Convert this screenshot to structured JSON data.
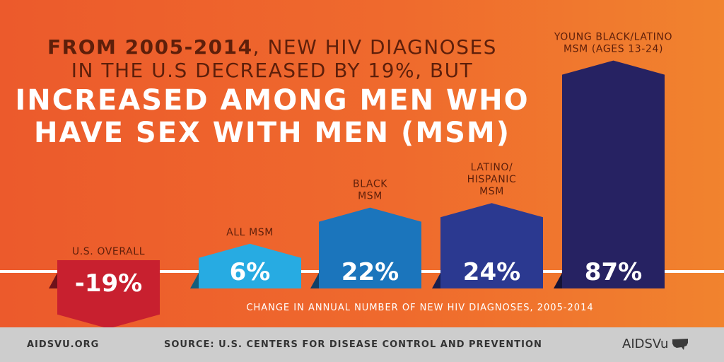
{
  "headline": {
    "line1_bold": "FROM 2005-2014",
    "line1_rest": ", NEW HIV DIAGNOSES",
    "line2": "IN THE U.S DECREASED BY 19%, BUT",
    "line3": "INCREASED AMONG MEN WHO",
    "line4": "HAVE SEX WITH MEN (MSM)"
  },
  "chart_data": {
    "type": "bar",
    "title": "Change in annual number of new HIV diagnoses, 2005-2014",
    "categories": [
      [
        "U.S. OVERALL"
      ],
      [
        "ALL MSM"
      ],
      [
        "BLACK",
        "MSM"
      ],
      [
        "LATINO/",
        "HISPANIC",
        "MSM"
      ],
      [
        "YOUNG BLACK/LATINO",
        "MSM (AGES 13-24)"
      ]
    ],
    "values": [
      -19,
      6,
      22,
      24,
      87
    ],
    "value_labels": [
      "-19%",
      "6%",
      "22%",
      "24%",
      "87%"
    ],
    "colors": [
      "#c8202f",
      "#27abe2",
      "#1b75bc",
      "#2b3990",
      "#262262"
    ],
    "unit": "%",
    "xlabel": "CHANGE IN ANNUAL NUMBER OF NEW HIV DIAGNOSES, 2005-2014",
    "ylabel": ""
  },
  "footer": {
    "site": "AIDSVU.ORG",
    "source": "SOURCE: U.S. CENTERS FOR DISEASE CONTROL AND PREVENTION",
    "logo_text": "AIDSVu"
  }
}
